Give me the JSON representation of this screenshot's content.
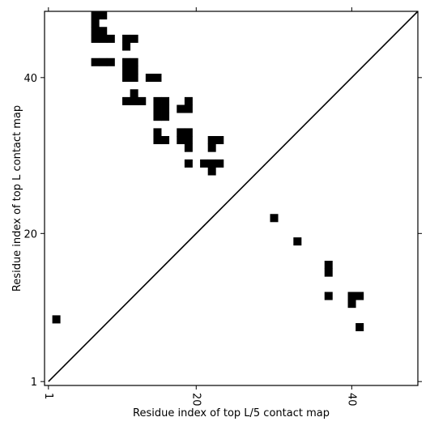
{
  "chart_data": {
    "type": "heatmap",
    "title": "",
    "xlabel": "Residue index of top L/5 contact map",
    "ylabel": "Residue index of top L contact map",
    "xlim": [
      0.5,
      48.5
    ],
    "ylim": [
      0.5,
      48.5
    ],
    "x_ticks": [
      1,
      20,
      40
    ],
    "y_ticks": [
      1,
      20,
      40
    ],
    "x_tick_rotation": -90,
    "diagonal": true,
    "grid": false,
    "upper_triangle_cells": [
      [
        7,
        48
      ],
      [
        8,
        48
      ],
      [
        7,
        47
      ],
      [
        7,
        46
      ],
      [
        8,
        46
      ],
      [
        7,
        45
      ],
      [
        8,
        45
      ],
      [
        9,
        45
      ],
      [
        11,
        45
      ],
      [
        12,
        45
      ],
      [
        11,
        44
      ],
      [
        7,
        42
      ],
      [
        8,
        42
      ],
      [
        9,
        42
      ],
      [
        11,
        42
      ],
      [
        12,
        42
      ],
      [
        11,
        41
      ],
      [
        12,
        41
      ],
      [
        11,
        40
      ],
      [
        12,
        40
      ],
      [
        14,
        40
      ],
      [
        15,
        40
      ],
      [
        12,
        38
      ],
      [
        11,
        37
      ],
      [
        12,
        37
      ],
      [
        13,
        37
      ],
      [
        15,
        37
      ],
      [
        16,
        37
      ],
      [
        15,
        36
      ],
      [
        16,
        36
      ],
      [
        15,
        35
      ],
      [
        16,
        35
      ],
      [
        19,
        37
      ],
      [
        18,
        36
      ],
      [
        19,
        36
      ],
      [
        15,
        33
      ],
      [
        15,
        32
      ],
      [
        16,
        32
      ],
      [
        18,
        33
      ],
      [
        19,
        33
      ],
      [
        18,
        32
      ],
      [
        19,
        32
      ],
      [
        19,
        31
      ],
      [
        22,
        32
      ],
      [
        23,
        32
      ],
      [
        22,
        31
      ],
      [
        19,
        29
      ],
      [
        21,
        29
      ],
      [
        22,
        29
      ],
      [
        23,
        29
      ],
      [
        22,
        28
      ]
    ],
    "lower_triangle_cells": [
      [
        2,
        9
      ],
      [
        30,
        22
      ],
      [
        33,
        19
      ],
      [
        37,
        16
      ],
      [
        37,
        15
      ],
      [
        37,
        12
      ],
      [
        40,
        12
      ],
      [
        41,
        12
      ],
      [
        40,
        11
      ],
      [
        41,
        8
      ]
    ]
  }
}
